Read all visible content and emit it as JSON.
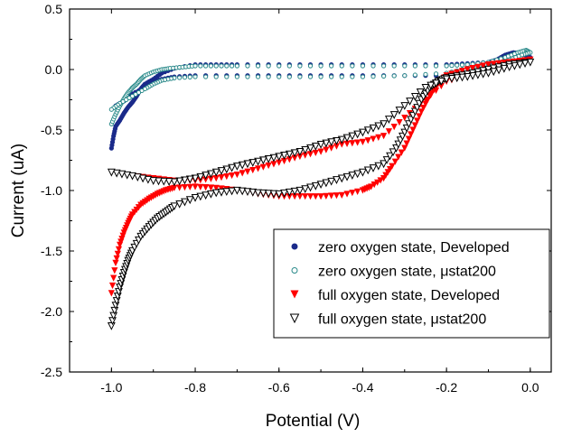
{
  "chart_data": {
    "type": "scatter",
    "xlabel": "Potential (V)",
    "ylabel": "Current (uA)",
    "xlim": [
      -1.1,
      0.05
    ],
    "ylim": [
      -2.5,
      0.5
    ],
    "xticks": [
      -1.0,
      -0.8,
      -0.6,
      -0.4,
      -0.2,
      0.0
    ],
    "xtick_labels": [
      "-1.0",
      "-0.8",
      "-0.6",
      "-0.4",
      "-0.2",
      "0.0"
    ],
    "yticks": [
      0.5,
      0.0,
      -0.5,
      -1.0,
      -1.5,
      -2.0,
      -2.5
    ],
    "ytick_labels": [
      "0.5",
      "0.0",
      "-0.5",
      "-1.0",
      "-1.5",
      "-2.0",
      "-2.5"
    ],
    "legend_position": "bottom-right",
    "series": [
      {
        "name": "zero oxygen state, Developed",
        "color": "#1a2a8a",
        "marker": "filled-circle",
        "x": [
          -1.0,
          -0.995,
          -0.99,
          -0.98,
          -0.97,
          -0.96,
          -0.95,
          -0.94,
          -0.93,
          -0.92,
          -0.9,
          -0.88,
          -0.85,
          -0.8,
          -0.75,
          -0.7,
          -0.6,
          -0.5,
          -0.4,
          -0.3,
          -0.2,
          -0.15,
          -0.1,
          -0.08,
          -0.06,
          -0.04,
          -0.02,
          0.0,
          -0.02,
          -0.05,
          -0.1,
          -0.2,
          -0.3,
          -0.4,
          -0.5,
          -0.6,
          -0.7,
          -0.8,
          -0.85,
          -0.88,
          -0.9,
          -0.92,
          -0.95,
          -0.97,
          -0.99
        ],
        "y": [
          -0.65,
          -0.55,
          -0.47,
          -0.42,
          -0.36,
          -0.31,
          -0.27,
          -0.22,
          -0.16,
          -0.12,
          -0.08,
          -0.03,
          0.01,
          0.04,
          0.04,
          0.04,
          0.04,
          0.04,
          0.04,
          0.04,
          0.04,
          0.05,
          0.06,
          0.08,
          0.12,
          0.14,
          0.13,
          0.1,
          0.07,
          0.05,
          0.0,
          -0.05,
          -0.05,
          -0.05,
          -0.05,
          -0.05,
          -0.05,
          -0.05,
          -0.06,
          -0.08,
          -0.11,
          -0.15,
          -0.2,
          -0.26,
          -0.3
        ]
      },
      {
        "name": "zero oxygen state, μstat200",
        "color": "#2a8a8a",
        "marker": "open-circle",
        "x": [
          -1.0,
          -0.99,
          -0.98,
          -0.97,
          -0.96,
          -0.95,
          -0.94,
          -0.93,
          -0.92,
          -0.9,
          -0.88,
          -0.86,
          -0.83,
          -0.8,
          -0.75,
          -0.7,
          -0.6,
          -0.5,
          -0.4,
          -0.3,
          -0.2,
          -0.15,
          -0.1,
          -0.06,
          -0.03,
          -0.01,
          0.0,
          -0.02,
          -0.05,
          -0.1,
          -0.15,
          -0.2,
          -0.3,
          -0.4,
          -0.5,
          -0.6,
          -0.7,
          -0.8,
          -0.85,
          -0.88,
          -0.9,
          -0.92,
          -0.95,
          -0.98,
          -1.0
        ],
        "y": [
          -0.45,
          -0.37,
          -0.3,
          -0.24,
          -0.19,
          -0.15,
          -0.12,
          -0.08,
          -0.05,
          -0.02,
          0.0,
          0.01,
          0.02,
          0.03,
          0.03,
          0.03,
          0.03,
          0.03,
          0.03,
          0.03,
          0.03,
          0.04,
          0.06,
          0.1,
          0.14,
          0.16,
          0.14,
          0.12,
          0.08,
          0.04,
          0.01,
          -0.03,
          -0.05,
          -0.06,
          -0.06,
          -0.06,
          -0.06,
          -0.06,
          -0.07,
          -0.09,
          -0.12,
          -0.16,
          -0.22,
          -0.28,
          -0.33
        ]
      },
      {
        "name": "full oxygen state, Developed",
        "color": "#ff0000",
        "marker": "filled-triangle-down",
        "x": [
          -1.0,
          -0.99,
          -0.98,
          -0.97,
          -0.96,
          -0.95,
          -0.93,
          -0.91,
          -0.89,
          -0.87,
          -0.85,
          -0.8,
          -0.75,
          -0.7,
          -0.65,
          -0.6,
          -0.55,
          -0.5,
          -0.45,
          -0.4,
          -0.38,
          -0.35,
          -0.33,
          -0.3,
          -0.28,
          -0.26,
          -0.24,
          -0.22,
          -0.2,
          -0.15,
          -0.1,
          -0.05,
          0.0,
          -0.05,
          -0.1,
          -0.15,
          -0.2,
          -0.25,
          -0.3,
          -0.35,
          -0.4,
          -0.45,
          -0.5,
          -0.55,
          -0.6,
          -0.65,
          -0.7,
          -0.75,
          -0.8,
          -0.85,
          -0.9,
          -0.95,
          -1.0
        ],
        "y": [
          -1.85,
          -1.6,
          -1.45,
          -1.35,
          -1.27,
          -1.2,
          -1.12,
          -1.07,
          -1.03,
          -1.0,
          -0.98,
          -0.97,
          -0.98,
          -1.0,
          -1.03,
          -1.05,
          -1.05,
          -1.05,
          -1.04,
          -1.0,
          -0.97,
          -0.9,
          -0.8,
          -0.65,
          -0.5,
          -0.35,
          -0.22,
          -0.12,
          -0.05,
          0.0,
          0.04,
          0.06,
          0.08,
          0.03,
          0.0,
          -0.05,
          -0.1,
          -0.25,
          -0.4,
          -0.55,
          -0.6,
          -0.62,
          -0.68,
          -0.72,
          -0.77,
          -0.82,
          -0.87,
          -0.9,
          -0.92,
          -0.92,
          -0.9,
          -0.88,
          -0.85
        ]
      },
      {
        "name": "full oxygen state, μstat200",
        "color": "#000000",
        "marker": "open-triangle-down",
        "x": [
          -1.0,
          -0.99,
          -0.98,
          -0.97,
          -0.96,
          -0.95,
          -0.93,
          -0.91,
          -0.89,
          -0.87,
          -0.85,
          -0.8,
          -0.75,
          -0.7,
          -0.65,
          -0.6,
          -0.55,
          -0.5,
          -0.45,
          -0.4,
          -0.35,
          -0.32,
          -0.3,
          -0.28,
          -0.26,
          -0.24,
          -0.22,
          -0.2,
          -0.15,
          -0.1,
          -0.05,
          0.0,
          -0.05,
          -0.1,
          -0.15,
          -0.2,
          -0.25,
          -0.3,
          -0.35,
          -0.4,
          -0.45,
          -0.5,
          -0.55,
          -0.6,
          -0.65,
          -0.7,
          -0.75,
          -0.8,
          -0.85,
          -0.9,
          -0.95,
          -1.0
        ],
        "y": [
          -2.12,
          -1.95,
          -1.8,
          -1.68,
          -1.58,
          -1.5,
          -1.38,
          -1.3,
          -1.23,
          -1.18,
          -1.13,
          -1.06,
          -1.02,
          -1.0,
          -1.02,
          -1.03,
          -1.0,
          -0.95,
          -0.9,
          -0.85,
          -0.78,
          -0.65,
          -0.52,
          -0.38,
          -0.25,
          -0.15,
          -0.1,
          -0.07,
          -0.04,
          0.0,
          0.04,
          0.06,
          0.02,
          -0.03,
          -0.06,
          -0.08,
          -0.15,
          -0.3,
          -0.45,
          -0.52,
          -0.58,
          -0.62,
          -0.68,
          -0.72,
          -0.76,
          -0.8,
          -0.85,
          -0.9,
          -0.93,
          -0.92,
          -0.88,
          -0.85
        ]
      }
    ]
  }
}
